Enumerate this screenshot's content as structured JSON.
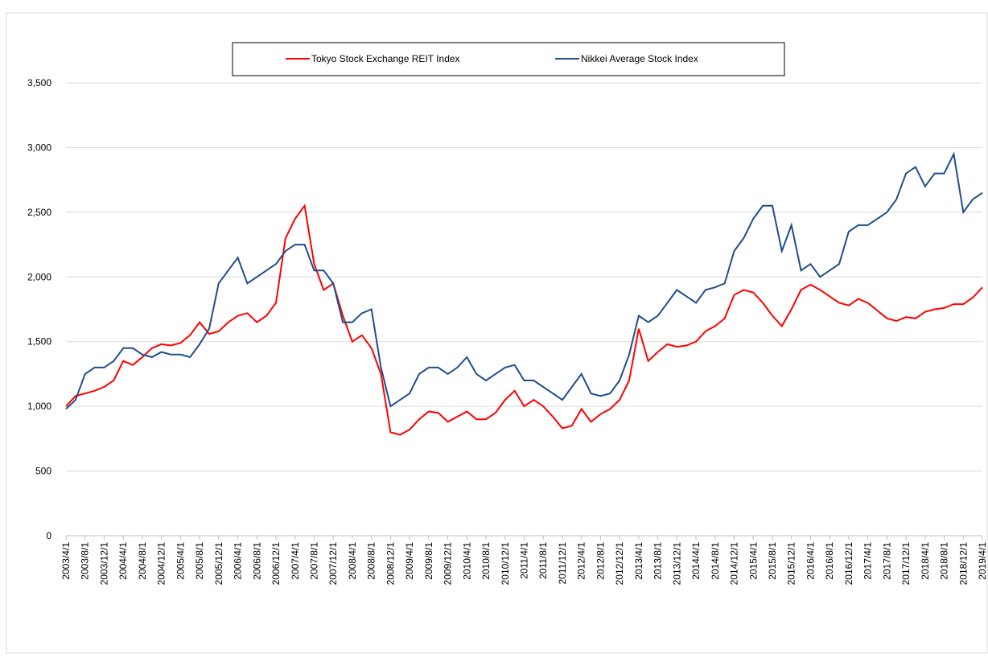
{
  "chart_data": {
    "type": "line",
    "categories": [
      "2003/4/1",
      null,
      "2003/8/1",
      null,
      "2003/12/1",
      null,
      "2004/4/1",
      null,
      "2004/8/1",
      null,
      "2004/12/1",
      null,
      "2005/4/1",
      null,
      "2005/8/1",
      null,
      "2005/12/1",
      null,
      "2006/4/1",
      null,
      "2006/8/1",
      null,
      "2006/12/1",
      null,
      "2007/4/1",
      null,
      "2007/8/1",
      null,
      "2007/12/1",
      null,
      "2008/4/1",
      null,
      "2008/8/1",
      null,
      "2008/12/1",
      null,
      "2009/4/1",
      null,
      "2009/8/1",
      null,
      "2009/12/1",
      null,
      "2010/4/1",
      null,
      "2010/8/1",
      null,
      "2010/12/1",
      null,
      "2011/4/1",
      null,
      "2011/8/1",
      null,
      "2011/12/1",
      null,
      "2012/4/1",
      null,
      "2012/8/1",
      null,
      "2012/12/1",
      null,
      "2013/4/1",
      null,
      "2013/8/1",
      null,
      "2013/12/1",
      null,
      "2014/4/1",
      null,
      "2014/8/1",
      null,
      "2014/12/1",
      null,
      "2015/4/1",
      null,
      "2015/8/1",
      null,
      "2015/12/1",
      null,
      "2016/4/1",
      null,
      "2016/8/1",
      null,
      "2016/12/1",
      null,
      "2017/4/1",
      null,
      "2017/8/1",
      null,
      "2017/12/1",
      null,
      "2018/4/1",
      null,
      "2018/8/1",
      null,
      "2018/12/1",
      null,
      "2019/4/1"
    ],
    "series": [
      {
        "name": "Tokyo Stock Exchange REIT Index",
        "color": "#ff0000",
        "values": [
          1000,
          1080,
          1100,
          1120,
          1150,
          1200,
          1350,
          1320,
          1380,
          1450,
          1480,
          1470,
          1490,
          1550,
          1650,
          1560,
          1580,
          1650,
          1700,
          1720,
          1650,
          1700,
          1800,
          2300,
          2450,
          2550,
          2100,
          1900,
          1950,
          1700,
          1500,
          1550,
          1450,
          1250,
          800,
          780,
          820,
          900,
          960,
          950,
          880,
          920,
          960,
          900,
          900,
          950,
          1050,
          1120,
          1000,
          1050,
          1000,
          920,
          830,
          850,
          980,
          880,
          940,
          980,
          1050,
          1200,
          1600,
          1350,
          1420,
          1480,
          1460,
          1470,
          1500,
          1580,
          1620,
          1680,
          1860,
          1900,
          1880,
          1800,
          1700,
          1620,
          1750,
          1900,
          1940,
          1900,
          1850,
          1800,
          1780,
          1830,
          1800,
          1740,
          1680,
          1660,
          1690,
          1680,
          1730,
          1750,
          1760,
          1790,
          1790,
          1840,
          1920
        ]
      },
      {
        "name": "Nikkei Average Stock Index",
        "color": "#1f4e8c",
        "values": [
          980,
          1050,
          1250,
          1300,
          1300,
          1350,
          1450,
          1450,
          1400,
          1380,
          1420,
          1400,
          1400,
          1380,
          1480,
          1600,
          1950,
          2050,
          2150,
          1950,
          2000,
          2050,
          2100,
          2200,
          2250,
          2250,
          2050,
          2050,
          1950,
          1650,
          1650,
          1720,
          1750,
          1300,
          1000,
          1050,
          1100,
          1250,
          1300,
          1300,
          1250,
          1300,
          1380,
          1250,
          1200,
          1250,
          1300,
          1320,
          1200,
          1200,
          1150,
          1100,
          1050,
          1150,
          1250,
          1100,
          1080,
          1100,
          1200,
          1400,
          1700,
          1650,
          1700,
          1800,
          1900,
          1850,
          1800,
          1900,
          1920,
          1950,
          2200,
          2300,
          2450,
          2550,
          2550,
          2200,
          2400,
          2050,
          2100,
          2000,
          2050,
          2100,
          2350,
          2400,
          2400,
          2450,
          2500,
          2600,
          2800,
          2850,
          2700,
          2800,
          2800,
          2950,
          2500,
          2600,
          2650
        ]
      }
    ],
    "ylim": [
      0,
      3500
    ],
    "yticks": [
      0,
      500,
      {
        "value": 1000,
        "label": "1,000"
      },
      {
        "value": 1500,
        "label": "1,500"
      },
      {
        "value": 2000,
        "label": "2,000"
      },
      {
        "value": 2500,
        "label": "2,500"
      },
      {
        "value": 3000,
        "label": "3,000"
      },
      {
        "value": 3500,
        "label": "3,500"
      }
    ],
    "grid": true,
    "legend": "top"
  }
}
